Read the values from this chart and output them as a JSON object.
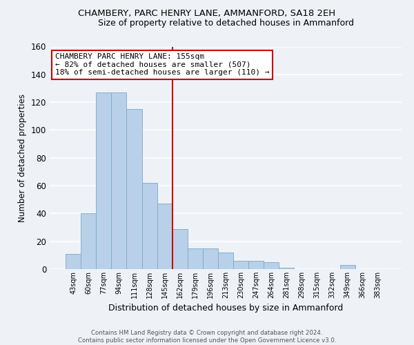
{
  "title": "CHAMBERY, PARC HENRY LANE, AMMANFORD, SA18 2EH",
  "subtitle": "Size of property relative to detached houses in Ammanford",
  "xlabel": "Distribution of detached houses by size in Ammanford",
  "ylabel": "Number of detached properties",
  "bin_labels": [
    "43sqm",
    "60sqm",
    "77sqm",
    "94sqm",
    "111sqm",
    "128sqm",
    "145sqm",
    "162sqm",
    "179sqm",
    "196sqm",
    "213sqm",
    "230sqm",
    "247sqm",
    "264sqm",
    "281sqm",
    "298sqm",
    "315sqm",
    "332sqm",
    "349sqm",
    "366sqm",
    "383sqm"
  ],
  "bar_heights": [
    11,
    40,
    127,
    127,
    115,
    62,
    47,
    29,
    15,
    15,
    12,
    6,
    6,
    5,
    1,
    0,
    0,
    0,
    3,
    0,
    0
  ],
  "bar_color": "#b8d0e8",
  "bar_edge_color": "#7aaac8",
  "vline_color": "#cc0000",
  "annotation_text": "CHAMBERY PARC HENRY LANE: 155sqm\n← 82% of detached houses are smaller (507)\n18% of semi-detached houses are larger (110) →",
  "annotation_box_color": "#ffffff",
  "annotation_box_edge": "#cc0000",
  "ylim": [
    0,
    160
  ],
  "yticks": [
    0,
    20,
    40,
    60,
    80,
    100,
    120,
    140,
    160
  ],
  "footer_text": "Contains HM Land Registry data © Crown copyright and database right 2024.\nContains public sector information licensed under the Open Government Licence v3.0.",
  "bg_color": "#eef2f7",
  "grid_color": "#ffffff"
}
